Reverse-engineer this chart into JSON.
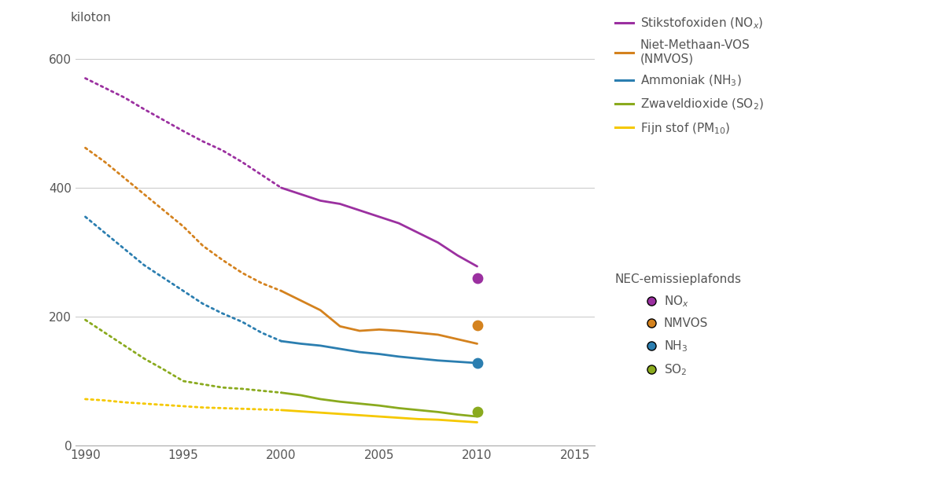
{
  "background_color": "#ffffff",
  "ylabel": "kiloton",
  "ylim": [
    0,
    630
  ],
  "xlim": [
    1989.5,
    2016
  ],
  "yticks": [
    0,
    200,
    400,
    600
  ],
  "xticks": [
    1990,
    1995,
    2000,
    2005,
    2010,
    2015
  ],
  "grid_color": "#cccccc",
  "NOx_color": "#9b30a0",
  "NMVOS_color": "#d4821e",
  "NH3_color": "#2b7eb0",
  "SO2_color": "#8aaa1e",
  "PM10_color": "#f5c800",
  "NOx_solid": {
    "years": [
      2000,
      2001,
      2002,
      2003,
      2004,
      2005,
      2006,
      2007,
      2008,
      2009,
      2010
    ],
    "values": [
      400,
      390,
      380,
      375,
      365,
      355,
      345,
      330,
      315,
      295,
      278
    ]
  },
  "NOx_dotted": {
    "years": [
      1990,
      1991,
      1992,
      1993,
      1994,
      1995,
      1996,
      1997,
      1998,
      1999,
      2000
    ],
    "values": [
      570,
      555,
      540,
      522,
      505,
      488,
      472,
      458,
      440,
      420,
      400
    ]
  },
  "NMVOS_solid": {
    "years": [
      2000,
      2001,
      2002,
      2003,
      2004,
      2005,
      2006,
      2007,
      2008,
      2009,
      2010
    ],
    "values": [
      240,
      225,
      210,
      185,
      178,
      180,
      178,
      175,
      172,
      165,
      158
    ]
  },
  "NMVOS_dotted": {
    "years": [
      1990,
      1991,
      1992,
      1993,
      1994,
      1995,
      1996,
      1997,
      1998,
      1999,
      2000
    ],
    "values": [
      462,
      440,
      415,
      390,
      365,
      340,
      310,
      288,
      268,
      252,
      240
    ]
  },
  "NH3_solid": {
    "years": [
      2000,
      2001,
      2002,
      2003,
      2004,
      2005,
      2006,
      2007,
      2008,
      2009,
      2010
    ],
    "values": [
      162,
      158,
      155,
      150,
      145,
      142,
      138,
      135,
      132,
      130,
      128
    ]
  },
  "NH3_dotted": {
    "years": [
      1990,
      1991,
      1992,
      1993,
      1994,
      1995,
      1996,
      1997,
      1998,
      1999,
      2000
    ],
    "values": [
      355,
      330,
      305,
      280,
      260,
      240,
      220,
      205,
      192,
      175,
      162
    ]
  },
  "SO2_solid": {
    "years": [
      2000,
      2001,
      2002,
      2003,
      2004,
      2005,
      2006,
      2007,
      2008,
      2009,
      2010
    ],
    "values": [
      82,
      78,
      72,
      68,
      65,
      62,
      58,
      55,
      52,
      48,
      45
    ]
  },
  "SO2_dotted": {
    "years": [
      1990,
      1991,
      1992,
      1993,
      1994,
      1995,
      1996,
      1997,
      1998,
      1999,
      2000
    ],
    "values": [
      195,
      175,
      155,
      135,
      118,
      100,
      95,
      90,
      88,
      85,
      82
    ]
  },
  "PM10_solid": {
    "years": [
      2000,
      2001,
      2002,
      2003,
      2004,
      2005,
      2006,
      2007,
      2008,
      2009,
      2010
    ],
    "values": [
      55,
      53,
      51,
      49,
      47,
      45,
      43,
      41,
      40,
      38,
      36
    ]
  },
  "PM10_dotted": {
    "years": [
      1990,
      1991,
      1992,
      1993,
      1994,
      1995,
      1996,
      1997,
      1998,
      1999,
      2000
    ],
    "values": [
      72,
      70,
      67,
      65,
      63,
      61,
      59,
      58,
      57,
      56,
      55
    ]
  },
  "NEC_NOx_x": 2010,
  "NEC_NOx_y": 260,
  "NEC_NMVOS_x": 2010,
  "NEC_NMVOS_y": 187,
  "NEC_NH3_x": 2010,
  "NEC_NH3_y": 128,
  "NEC_SO2_x": 2010,
  "NEC_SO2_y": 52,
  "line_labels": [
    {
      "label": "Stikstofoxiden (NO$_x$)",
      "color": "#9b30a0"
    },
    {
      "label": "Niet-Methaan-VOS\n(NMVOS)",
      "color": "#d4821e"
    },
    {
      "label": "Ammoniak (NH$_3$)",
      "color": "#2b7eb0"
    },
    {
      "label": "Zwaveldioxide (SO$_2$)",
      "color": "#8aaa1e"
    },
    {
      "label": "Fijn stof (PM$_{10}$)",
      "color": "#f5c800"
    }
  ],
  "dot_labels": [
    {
      "label": "NO$_x$",
      "color": "#9b30a0"
    },
    {
      "label": "NMVOS",
      "color": "#d4821e"
    },
    {
      "label": "NH$_3$",
      "color": "#2b7eb0"
    },
    {
      "label": "SO$_2$",
      "color": "#8aaa1e"
    }
  ],
  "nec_title": "NEC-emissieplafonds",
  "text_color": "#555555",
  "font_size": 11,
  "line_width": 2.0
}
